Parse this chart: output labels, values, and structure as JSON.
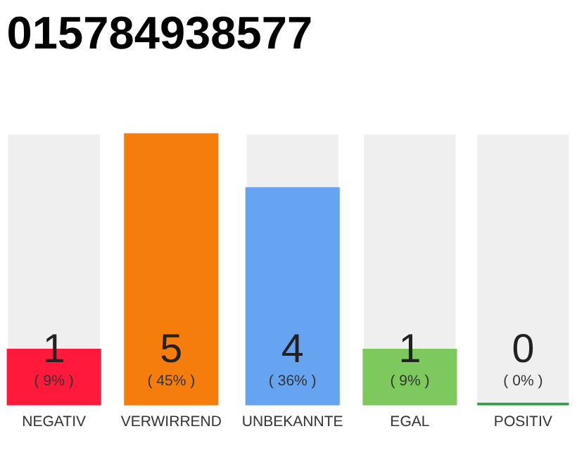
{
  "chart_data": {
    "type": "bar",
    "title": "015784938577",
    "categories": [
      "NEGATIV",
      "VERWIRREND",
      "UNBEKANNTE",
      "EGAL",
      "POSITIV"
    ],
    "values": [
      1,
      5,
      4,
      1,
      0
    ],
    "colors": [
      "#ff1a3c",
      "#f57d0b",
      "#66a3f0",
      "#7dc95e",
      "#2ea043"
    ],
    "data_labels": true,
    "annotations": [
      "( 9% )",
      "( 45% )",
      "( 36% )",
      "( 9% )",
      "( 0% )"
    ],
    "grid": false
  }
}
